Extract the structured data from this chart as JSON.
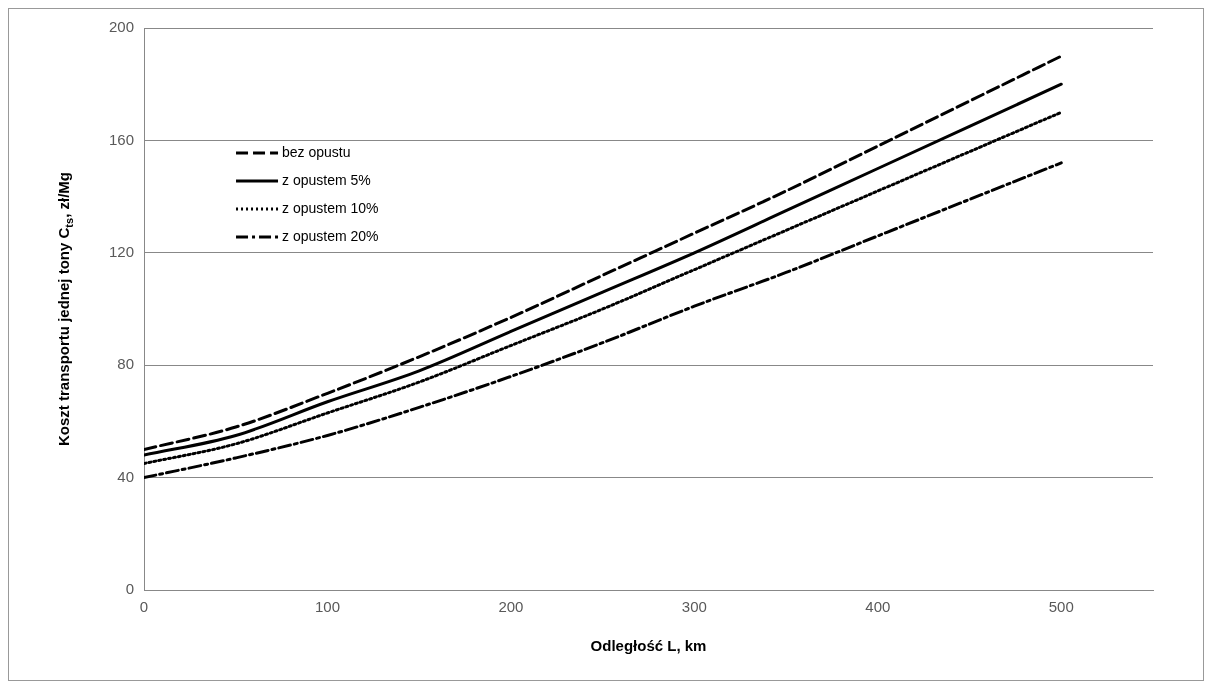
{
  "chart_data": {
    "type": "line",
    "xlabel": "Odległość L, km",
    "ylabel": "Koszt transportu jednej tony C$_{ts}$, zł/Mg",
    "x": [
      0,
      50,
      100,
      150,
      200,
      250,
      300,
      350,
      400,
      450,
      500
    ],
    "series": [
      {
        "name": "bez opustu",
        "color": "#000000",
        "line_style": "dashed",
        "values": [
          50,
          58,
          70,
          83,
          97,
          112,
          127,
          142,
          158,
          174,
          190
        ]
      },
      {
        "name": "z opustem 5%",
        "color": "#000000",
        "line_style": "solid",
        "values": [
          48,
          55,
          67,
          78,
          92,
          106,
          120,
          135,
          150,
          165,
          180
        ]
      },
      {
        "name": "z opustem 10%",
        "color": "#000000",
        "line_style": "dotted",
        "values": [
          45,
          52,
          63,
          74,
          87,
          100,
          114,
          128,
          142,
          156,
          170
        ]
      },
      {
        "name": "z opustem 20%",
        "color": "#000000",
        "line_style": "dashdot",
        "values": [
          40,
          47,
          55,
          65,
          76,
          88,
          101,
          113,
          126,
          139,
          152
        ]
      }
    ],
    "xlim": [
      0,
      550
    ],
    "xticks": [
      0,
      100,
      200,
      300,
      400,
      500
    ],
    "ylim": [
      0,
      200
    ],
    "yticks": [
      0,
      40,
      80,
      120,
      160,
      200
    ],
    "grid": "y",
    "legend": "top left",
    "marker": "none"
  }
}
